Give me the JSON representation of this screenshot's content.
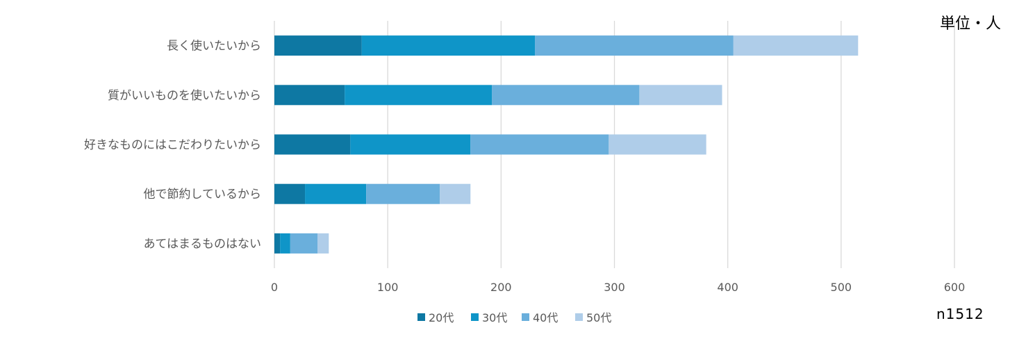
{
  "chart_data": {
    "type": "bar",
    "orientation": "horizontal",
    "stacked": true,
    "categories": [
      "長く使いたいから",
      "質がいいものを使いたいから",
      "好きなものにはこだわりたいから",
      "他で節約しているから",
      "あてはまるものはない"
    ],
    "series": [
      {
        "name": "20代",
        "color": "#0e78a3",
        "values": [
          77,
          62,
          67,
          27,
          5
        ]
      },
      {
        "name": "30代",
        "color": "#0f95c8",
        "values": [
          153,
          130,
          106,
          54,
          9
        ]
      },
      {
        "name": "40代",
        "color": "#6aafdc",
        "values": [
          175,
          130,
          122,
          65,
          24
        ]
      },
      {
        "name": "50代",
        "color": "#afcde9",
        "values": [
          110,
          73,
          86,
          27,
          10
        ]
      }
    ],
    "xlim": [
      0,
      600
    ],
    "xticks": [
      0,
      100,
      200,
      300,
      400,
      500,
      600
    ],
    "grid": true,
    "legend_position": "bottom"
  },
  "unit_label": "単位・人",
  "sample_label": "n1512"
}
